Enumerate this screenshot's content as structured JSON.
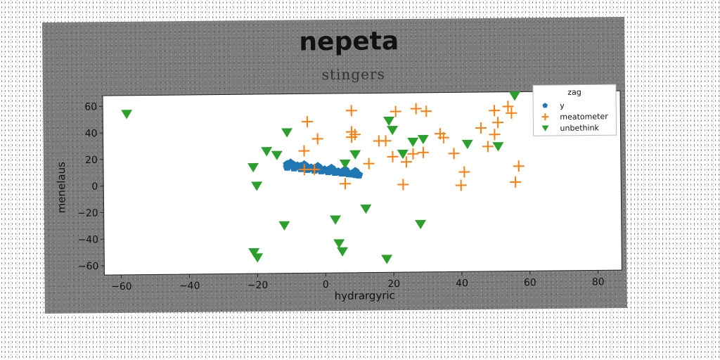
{
  "chart_data": {
    "type": "scatter",
    "title": "nepeta",
    "subtitle": "stingers",
    "xlabel": "hydrargyric",
    "ylabel": "menelaus",
    "xlim": [
      -65,
      87
    ],
    "ylim": [
      -67,
      68
    ],
    "xticks": [
      -60,
      -40,
      -20,
      0,
      20,
      40,
      60,
      80
    ],
    "yticks": [
      -60,
      -40,
      -20,
      0,
      20,
      40,
      60
    ],
    "grid": false,
    "legend": {
      "title": "zag",
      "position": "top-right"
    },
    "series": [
      {
        "name": "y",
        "marker": "pentagon",
        "color": "#1f77b4",
        "points": [
          [
            -11,
            15
          ],
          [
            -10,
            14.6
          ],
          [
            -9,
            14.2
          ],
          [
            -8,
            13.8
          ],
          [
            -7,
            13.4
          ],
          [
            -6,
            13
          ],
          [
            -5,
            12.6
          ],
          [
            -4,
            12.2
          ],
          [
            -3,
            11.8
          ],
          [
            -2,
            11.4
          ],
          [
            -1,
            11
          ],
          [
            0,
            10.6
          ],
          [
            1,
            10.2
          ],
          [
            2,
            9.8
          ],
          [
            3,
            9.4
          ],
          [
            4,
            9
          ],
          [
            5,
            8.6
          ],
          [
            6,
            8.2
          ],
          [
            7,
            7.8
          ],
          [
            8,
            7.4
          ],
          [
            9,
            7
          ],
          [
            10,
            6.6
          ],
          [
            -11,
            13
          ],
          [
            -9,
            12.4
          ],
          [
            -7,
            11.8
          ],
          [
            -5,
            11.2
          ],
          [
            -3,
            10.6
          ],
          [
            -1,
            10
          ],
          [
            1,
            9.4
          ],
          [
            3,
            8.8
          ],
          [
            5,
            8.2
          ],
          [
            7,
            7.6
          ],
          [
            9,
            7
          ],
          [
            -10,
            16
          ],
          [
            -6,
            14.6
          ],
          [
            -2,
            13.2
          ],
          [
            2,
            11.8
          ],
          [
            6,
            10.4
          ],
          [
            9,
            9.2
          ]
        ]
      },
      {
        "name": "meatometer",
        "marker": "plus",
        "color": "#ff7f0e",
        "points": [
          [
            -5,
            47
          ],
          [
            -2,
            34
          ],
          [
            -6,
            25
          ],
          [
            -6,
            11
          ],
          [
            -3,
            11
          ],
          [
            6,
            0
          ],
          [
            8,
            55
          ],
          [
            8,
            39
          ],
          [
            8,
            35
          ],
          [
            9,
            37
          ],
          [
            13,
            15
          ],
          [
            16,
            32
          ],
          [
            18,
            32
          ],
          [
            20,
            20
          ],
          [
            21,
            54
          ],
          [
            27,
            56
          ],
          [
            30,
            54
          ],
          [
            24,
            16
          ],
          [
            26,
            22
          ],
          [
            29,
            23
          ],
          [
            23,
            -1
          ],
          [
            34,
            37
          ],
          [
            35,
            34
          ],
          [
            38,
            22
          ],
          [
            40,
            -2
          ],
          [
            41,
            8
          ],
          [
            46,
            41
          ],
          [
            48,
            27
          ],
          [
            50,
            54
          ],
          [
            51,
            45
          ],
          [
            50,
            36
          ],
          [
            54,
            57
          ],
          [
            55,
            52
          ],
          [
            56,
            0
          ],
          [
            57,
            12
          ]
        ]
      },
      {
        "name": "unbethink",
        "marker": "triangle_down",
        "color": "#2ca02c",
        "points": [
          [
            -58,
            54
          ],
          [
            -21,
            13
          ],
          [
            -20,
            -1
          ],
          [
            -17,
            25
          ],
          [
            -14,
            22
          ],
          [
            -11,
            39
          ],
          [
            -12,
            -31
          ],
          [
            -21,
            -51
          ],
          [
            -20,
            -55
          ],
          [
            3,
            -27
          ],
          [
            4,
            -45
          ],
          [
            5,
            -51
          ],
          [
            6,
            15
          ],
          [
            9,
            22
          ],
          [
            12,
            -19
          ],
          [
            19,
            47
          ],
          [
            20,
            40
          ],
          [
            18,
            -57
          ],
          [
            23,
            22
          ],
          [
            26,
            31
          ],
          [
            29,
            33
          ],
          [
            28,
            -31
          ],
          [
            42,
            29
          ],
          [
            51,
            27
          ],
          [
            56,
            65
          ]
        ]
      }
    ]
  }
}
